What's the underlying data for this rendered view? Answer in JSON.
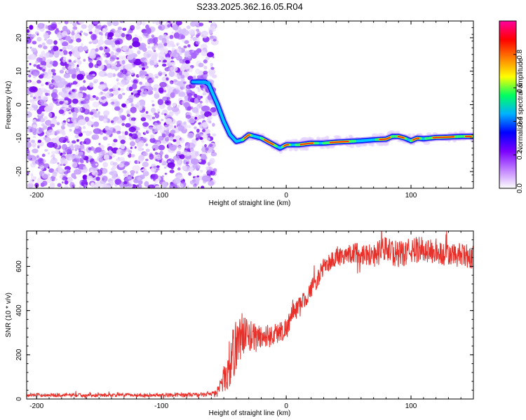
{
  "figure": {
    "title": "S233.2025.362.16.05.R04"
  },
  "chart_data": [
    {
      "type": "heatmap",
      "name": "spectrogram",
      "xlabel": "Height of straight line (km)",
      "ylabel": "Frequency (Hz)",
      "xlim": [
        -208,
        150
      ],
      "ylim": [
        -25,
        25
      ],
      "xticks": [
        -200,
        -100,
        0,
        100
      ],
      "yticks": [
        -20,
        -10,
        0,
        10,
        20
      ],
      "noise_region_x": [
        -208,
        -57
      ],
      "signal_track": {
        "x": [
          -75,
          -65,
          -62,
          -55,
          -50,
          -45,
          -40,
          -35,
          -30,
          -25,
          -20,
          -15,
          -10,
          -5,
          0,
          10,
          20,
          30,
          40,
          50,
          60,
          70,
          80,
          85,
          90,
          95,
          100,
          105,
          110,
          115,
          120,
          130,
          140,
          150
        ],
        "y": [
          6.8,
          6.8,
          6.0,
          0,
          -5,
          -9,
          -11,
          -10.5,
          -9,
          -9.5,
          -10,
          -11,
          -12,
          -13,
          -12,
          -12,
          -11.5,
          -11.5,
          -11.2,
          -11,
          -10.8,
          -10.5,
          -10.3,
          -9.5,
          -9.5,
          -10,
          -10.8,
          -10,
          -10.2,
          -10,
          -9.8,
          -9.7,
          -9.5,
          -9.5
        ]
      },
      "colorbar": {
        "label": "Normalized spectral amplitude",
        "range": [
          0,
          1
        ],
        "ticks": [
          "0.0",
          "0.2",
          "0.4",
          "0.6",
          "0.8"
        ],
        "tick_values": [
          0.0,
          0.2,
          0.4,
          0.6,
          0.8
        ],
        "colors": [
          "#ffffff",
          "#c080ff",
          "#7a00ff",
          "#0000ff",
          "#00b0ff",
          "#00ff60",
          "#ffff00",
          "#ff8000",
          "#ff0000",
          "#ff00a0"
        ]
      }
    },
    {
      "type": "line",
      "name": "snr",
      "xlabel": "Height of straight line (km)",
      "ylabel": "SNR (10 * v/v)",
      "xlim": [
        -208,
        150
      ],
      "ylim": [
        0,
        760
      ],
      "xticks": [
        -200,
        -100,
        0,
        100
      ],
      "yticks": [
        0,
        200,
        400,
        600
      ],
      "color": "#e8302a",
      "series": {
        "x": [
          -208,
          -100,
          -60,
          -55,
          -50,
          -45,
          -40,
          -35,
          -30,
          -25,
          -20,
          -10,
          0,
          5,
          10,
          15,
          20,
          25,
          30,
          40,
          50,
          60,
          70,
          80,
          90,
          100,
          110,
          120,
          130,
          140,
          150
        ],
        "y": [
          18,
          18,
          20,
          40,
          90,
          160,
          250,
          300,
          280,
          280,
          280,
          290,
          320,
          380,
          420,
          450,
          500,
          540,
          600,
          640,
          660,
          660,
          650,
          680,
          650,
          670,
          680,
          660,
          650,
          650,
          640
        ],
        "noise_amplitude": [
          8,
          8,
          10,
          20,
          60,
          120,
          120,
          100,
          80,
          70,
          60,
          50,
          50,
          50,
          40,
          40,
          40,
          40,
          40,
          45,
          45,
          50,
          55,
          60,
          60,
          60,
          60,
          55,
          55,
          55,
          55
        ]
      }
    }
  ]
}
